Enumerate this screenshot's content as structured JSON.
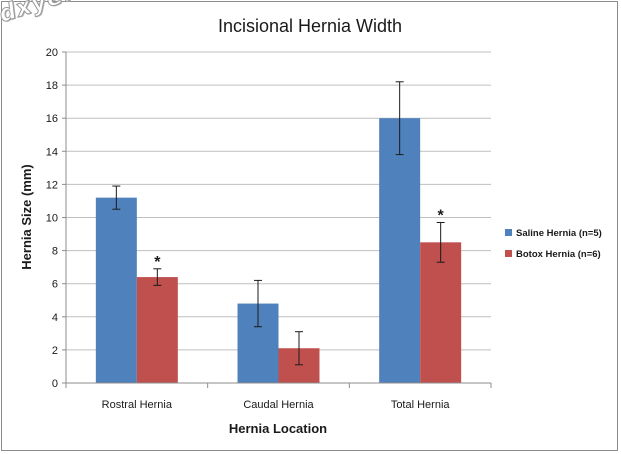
{
  "watermark": "dxye.com",
  "chart_data": {
    "type": "bar",
    "title": "Incisional Hernia Width",
    "xlabel": "Hernia Location",
    "ylabel": "Hernia Size (mm)",
    "ylim": [
      0,
      20
    ],
    "yticks": [
      0,
      2,
      4,
      6,
      8,
      10,
      12,
      14,
      16,
      18,
      20
    ],
    "grid": true,
    "legend_position": "right",
    "categories": [
      "Rostral Hernia",
      "Caudal Hernia",
      "Total Hernia"
    ],
    "series": [
      {
        "name": "Saline Hernia (n=5)",
        "color": "#4f81bd",
        "values": [
          11.2,
          4.8,
          16.0
        ],
        "errors": [
          0.7,
          1.4,
          2.2
        ],
        "annotations": [
          "",
          "",
          ""
        ]
      },
      {
        "name": "Botox Hernia (n=6)",
        "color": "#c0504d",
        "values": [
          6.4,
          2.1,
          8.5
        ],
        "errors": [
          0.5,
          1.0,
          1.2
        ],
        "annotations": [
          "*",
          "",
          "*"
        ]
      }
    ]
  }
}
